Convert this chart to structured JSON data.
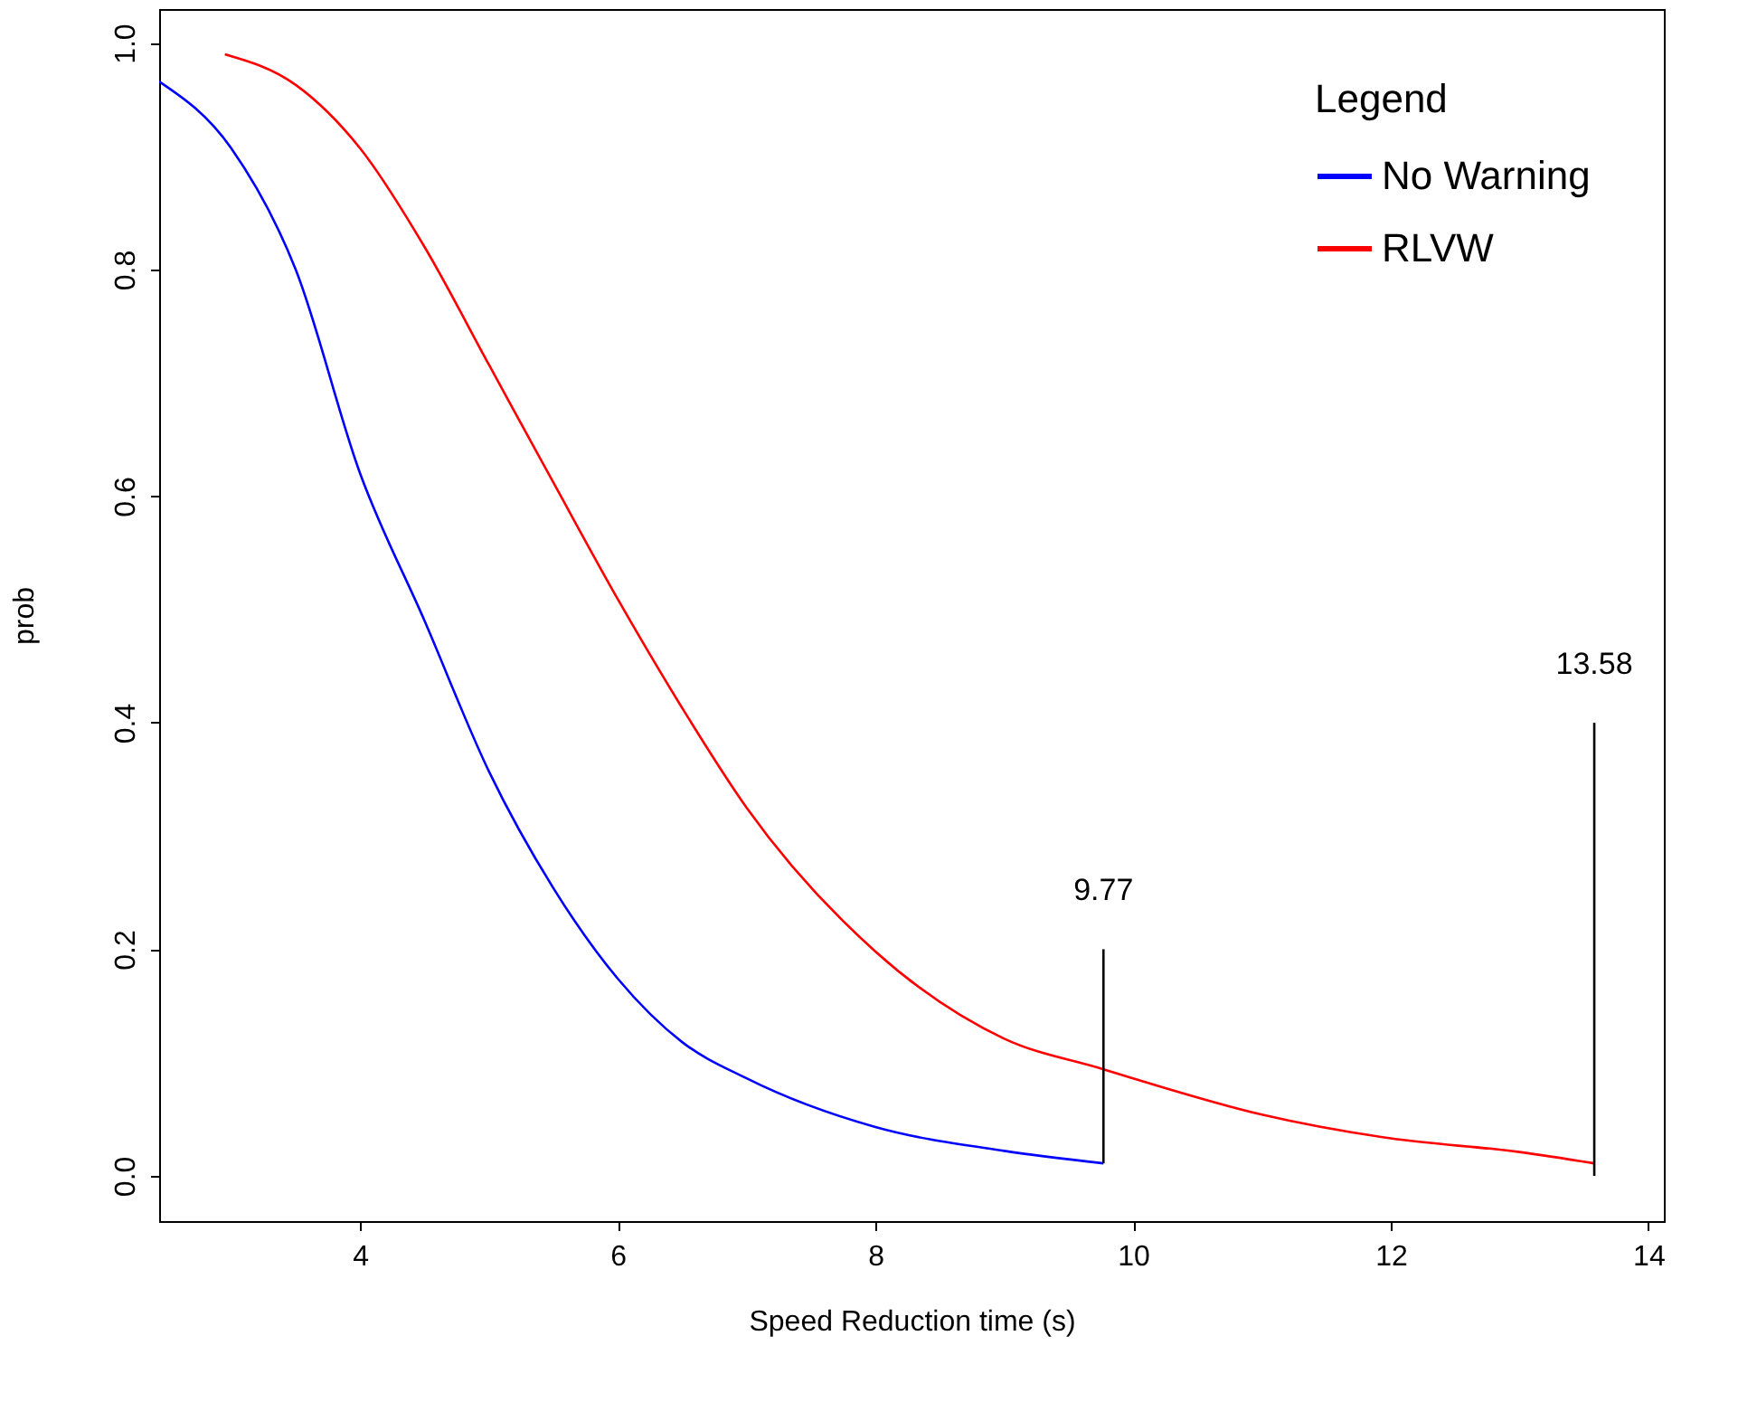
{
  "chart_data": {
    "type": "line",
    "xlabel": "Speed Reduction time (s)",
    "ylabel": "prob",
    "legend_title": "Legend",
    "legend": "top right",
    "grid": false,
    "line_style": "solid",
    "xlim": [
      2.44,
      14.12
    ],
    "ylim": [
      -0.04,
      1.03
    ],
    "xticks": [
      4,
      6,
      8,
      10,
      12,
      14
    ],
    "yticks": [
      {
        "value": 0,
        "label": "0.0"
      },
      {
        "value": 0.2,
        "label": "0.2"
      },
      {
        "value": 0.4,
        "label": "0.4"
      },
      {
        "value": 0.6,
        "label": "0.6"
      },
      {
        "value": 0.8,
        "label": "0.8"
      },
      {
        "value": 1,
        "label": "1.0"
      }
    ],
    "series": [
      {
        "name": "No Warning",
        "color": "#0000ff",
        "x": [
          2.44,
          3,
          3.5,
          4,
          4.5,
          5,
          5.5,
          6,
          6.5,
          7,
          8,
          9,
          9.77
        ],
        "values": [
          0.966,
          0.907,
          0.8,
          0.62,
          0.49,
          0.357,
          0.254,
          0.174,
          0.118,
          0.086,
          0.043,
          0.022,
          0.011
        ]
      },
      {
        "name": "RLVW",
        "color": "#ff0000",
        "x": [
          2.95,
          3.5,
          4,
          4.5,
          5,
          5.5,
          6,
          6.5,
          7,
          8,
          9,
          9.77,
          10,
          11,
          12,
          13,
          13.58
        ],
        "values": [
          0.99,
          0.963,
          0.907,
          0.82,
          0.716,
          0.612,
          0.509,
          0.413,
          0.325,
          0.198,
          0.121,
          0.094,
          0.086,
          0.054,
          0.033,
          0.021,
          0.011
        ]
      },
      {
        "color": "#000000",
        "x": [
          9.77,
          9.77
        ],
        "values": [
          0.011,
          0.2
        ]
      },
      {
        "color": "#000000",
        "x": [
          13.58,
          13.58
        ],
        "values": [
          0,
          0.4
        ]
      }
    ],
    "annotations": [
      {
        "text": "9.77",
        "x": 9.77,
        "y": 0.2
      },
      {
        "text": "13.58",
        "x": 13.58,
        "y": 0.4
      }
    ]
  }
}
